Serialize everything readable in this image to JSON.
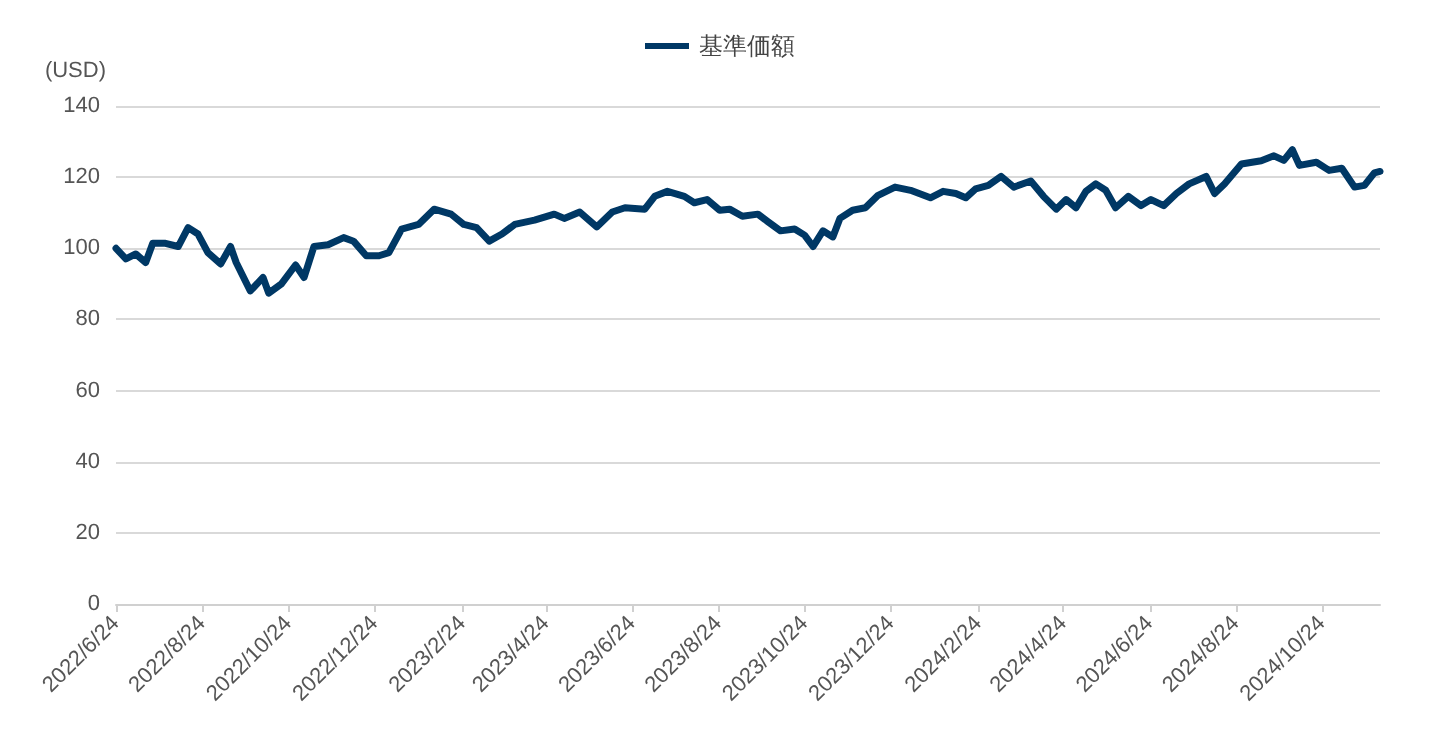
{
  "chart_data": {
    "type": "line",
    "ylabel": "(USD)",
    "legend": "top",
    "grid": "y",
    "marker": "none",
    "line_style": "solid",
    "xlim": [
      "2022-06-24",
      "2024-12-04"
    ],
    "ylim": [
      0,
      140
    ],
    "yticks": [
      0,
      20,
      40,
      60,
      80,
      100,
      120,
      140
    ],
    "xticks": [
      {
        "value": "2022-06-24",
        "label": "2022/6/24"
      },
      {
        "value": "2022-08-24",
        "label": "2022/8/24"
      },
      {
        "value": "2022-10-24",
        "label": "2022/10/24"
      },
      {
        "value": "2022-12-24",
        "label": "2022/12/24"
      },
      {
        "value": "2023-02-24",
        "label": "2023/2/24"
      },
      {
        "value": "2023-04-24",
        "label": "2023/4/24"
      },
      {
        "value": "2023-06-24",
        "label": "2023/6/24"
      },
      {
        "value": "2023-08-24",
        "label": "2023/8/24"
      },
      {
        "value": "2023-10-24",
        "label": "2023/10/24"
      },
      {
        "value": "2023-12-24",
        "label": "2023/12/24"
      },
      {
        "value": "2024-02-24",
        "label": "2024/2/24"
      },
      {
        "value": "2024-04-24",
        "label": "2024/4/24"
      },
      {
        "value": "2024-06-24",
        "label": "2024/6/24"
      },
      {
        "value": "2024-08-24",
        "label": "2024/8/24"
      },
      {
        "value": "2024-10-24",
        "label": "2024/10/24"
      }
    ],
    "x": [
      "2022-06-24",
      "2022-07-01",
      "2022-07-08",
      "2022-07-15",
      "2022-07-20",
      "2022-07-29",
      "2022-08-07",
      "2022-08-14",
      "2022-08-21",
      "2022-08-28",
      "2022-09-06",
      "2022-09-13",
      "2022-09-17",
      "2022-09-27",
      "2022-10-06",
      "2022-10-10",
      "2022-10-19",
      "2022-10-29",
      "2022-11-04",
      "2022-11-11",
      "2022-11-21",
      "2022-12-02",
      "2022-12-09",
      "2022-12-18",
      "2022-12-27",
      "2023-01-03",
      "2023-01-12",
      "2023-01-24",
      "2023-02-04",
      "2023-02-16",
      "2023-02-25",
      "2023-03-06",
      "2023-03-15",
      "2023-03-24",
      "2023-04-02",
      "2023-04-16",
      "2023-04-30",
      "2023-05-07",
      "2023-05-18",
      "2023-05-30",
      "2023-06-10",
      "2023-06-19",
      "2023-07-03",
      "2023-07-10",
      "2023-07-19",
      "2023-07-31",
      "2023-08-07",
      "2023-08-16",
      "2023-08-25",
      "2023-09-01",
      "2023-09-10",
      "2023-09-21",
      "2023-09-28",
      "2023-10-07",
      "2023-10-17",
      "2023-10-24",
      "2023-10-30",
      "2023-11-06",
      "2023-11-13",
      "2023-11-18",
      "2023-11-27",
      "2023-12-06",
      "2023-12-15",
      "2023-12-27",
      "2024-01-07",
      "2024-01-21",
      "2024-01-30",
      "2024-02-08",
      "2024-02-15",
      "2024-02-22",
      "2024-03-02",
      "2024-03-11",
      "2024-03-20",
      "2024-04-01",
      "2024-04-10",
      "2024-04-19",
      "2024-04-26",
      "2024-05-03",
      "2024-05-10",
      "2024-05-17",
      "2024-05-24",
      "2024-05-31",
      "2024-06-09",
      "2024-06-18",
      "2024-06-25",
      "2024-07-04",
      "2024-07-13",
      "2024-07-22",
      "2024-08-03",
      "2024-08-09",
      "2024-08-16",
      "2024-08-28",
      "2024-09-11",
      "2024-09-20",
      "2024-09-27",
      "2024-10-03",
      "2024-10-08",
      "2024-10-20",
      "2024-10-29",
      "2024-11-07",
      "2024-11-16",
      "2024-11-23",
      "2024-11-30",
      "2024-12-04"
    ],
    "series": [
      {
        "name": "基準価額",
        "color": "#003865",
        "values": [
          100,
          97,
          98.4,
          96,
          101.4,
          101.4,
          100.5,
          105.8,
          104,
          98.8,
          95.6,
          100.5,
          96,
          88,
          91.8,
          87.4,
          90,
          95.3,
          91.8,
          100.5,
          101,
          103,
          102,
          97.9,
          97.9,
          98.8,
          105.4,
          106.7,
          111,
          109.6,
          106.7,
          105.8,
          102,
          104,
          106.7,
          107.9,
          109.6,
          108.4,
          110.2,
          106,
          110.2,
          111.4,
          111,
          114.6,
          116,
          114.6,
          112.8,
          113.7,
          110.7,
          111,
          109,
          109.6,
          107.5,
          104.9,
          105.4,
          103.7,
          100.5,
          104.9,
          103.2,
          108.4,
          110.7,
          111.4,
          114.9,
          117.2,
          116.3,
          114.2,
          116,
          115.4,
          114.2,
          116.7,
          117.7,
          120.2,
          117.2,
          118.9,
          114.6,
          111,
          113.7,
          111.4,
          116,
          118.1,
          116.3,
          111.4,
          114.6,
          112,
          113.7,
          112,
          115.4,
          118.1,
          120.2,
          115.4,
          118.1,
          123.7,
          124.6,
          126,
          124.7,
          127.7,
          123.3,
          124.2,
          121.9,
          122.5,
          117.2,
          117.7,
          121.2,
          121.6
        ]
      }
    ]
  }
}
